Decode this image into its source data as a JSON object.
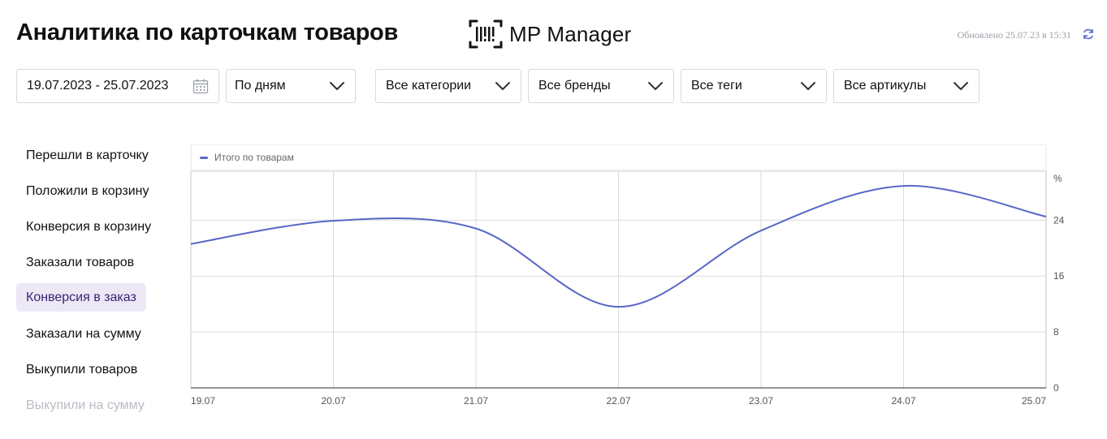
{
  "header": {
    "title": "Аналитика по карточкам товаров",
    "brand": "MP Manager",
    "updated": "Обновлено 25.07.23 в 15:31"
  },
  "filters": {
    "date_range": "19.07.2023 - 25.07.2023",
    "period": "По дням",
    "category": "Все категории",
    "brand": "Все бренды",
    "tag": "Все теги",
    "article": "Все артикулы"
  },
  "metrics": [
    {
      "label": "Перешли в карточку",
      "active": false
    },
    {
      "label": "Положили в корзину",
      "active": false
    },
    {
      "label": "Конверсия в корзину",
      "active": false
    },
    {
      "label": "Заказали товаров",
      "active": false
    },
    {
      "label": "Конверсия в заказ",
      "active": true
    },
    {
      "label": "Заказали на сумму",
      "active": false
    },
    {
      "label": "Выкупили товаров",
      "active": false
    },
    {
      "label": "Выкупили на сумму",
      "active": false
    }
  ],
  "colors": {
    "series": "#5867c7",
    "active_metric_bg": "#ece8f6",
    "grid": "#d9dadd"
  },
  "chart_data": {
    "type": "line",
    "x": [
      "19.07",
      "20.07",
      "21.07",
      "22.07",
      "23.07",
      "24.07",
      "25.07"
    ],
    "series": [
      {
        "name": "Итого по товарам",
        "values": [
          20.6,
          23.9,
          22.8,
          11.6,
          22.5,
          28.9,
          24.5
        ]
      }
    ],
    "y_unit": "%",
    "y_ticks": [
      0,
      8,
      16,
      24
    ],
    "ylim": [
      0,
      31
    ],
    "y_axis_position": "right",
    "grid": true,
    "legend": "top-left"
  }
}
